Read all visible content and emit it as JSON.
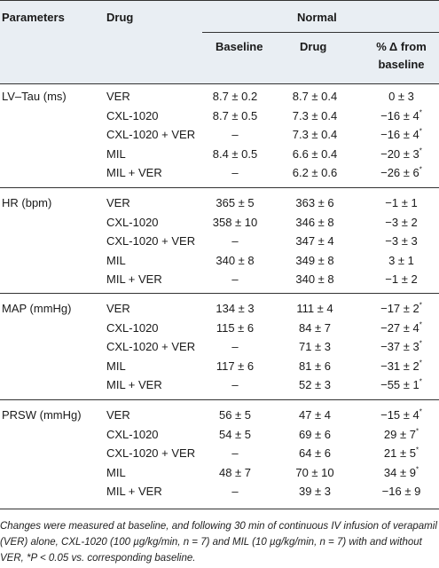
{
  "headers": {
    "parameters": "Parameters",
    "drug": "Drug",
    "normal": "Normal",
    "baseline": "Baseline",
    "drug_col": "Drug",
    "pct_line1": "% Δ from",
    "pct_line2": "baseline"
  },
  "groups": [
    {
      "param": "LV–Tau (ms)",
      "rows": [
        {
          "drug": "VER",
          "baseline": "8.7 ± 0.2",
          "drugval": "8.7 ± 0.4",
          "pct": "0 ± 3",
          "sig": false
        },
        {
          "drug": "CXL-1020",
          "baseline": "8.7 ± 0.5",
          "drugval": "7.3 ± 0.4",
          "pct": "−16 ± 4",
          "sig": true
        },
        {
          "drug": "CXL-1020 + VER",
          "baseline": "–",
          "drugval": "7.3 ± 0.4",
          "pct": "−16 ± 4",
          "sig": true
        },
        {
          "drug": "MIL",
          "baseline": "8.4 ± 0.5",
          "drugval": "6.6 ± 0.4",
          "pct": "−20 ± 3",
          "sig": true
        },
        {
          "drug": "MIL + VER",
          "baseline": "–",
          "drugval": "6.2 ± 0.6",
          "pct": "−26 ± 6",
          "sig": true
        }
      ]
    },
    {
      "param": "HR (bpm)",
      "rows": [
        {
          "drug": "VER",
          "baseline": "365 ± 5",
          "drugval": "363 ± 6",
          "pct": "−1 ± 1",
          "sig": false
        },
        {
          "drug": "CXL-1020",
          "baseline": "358 ± 10",
          "drugval": "346 ± 8",
          "pct": "−3 ± 2",
          "sig": false
        },
        {
          "drug": "CXL-1020 + VER",
          "baseline": "–",
          "drugval": "347 ± 4",
          "pct": "−3 ± 3",
          "sig": false
        },
        {
          "drug": "MIL",
          "baseline": "340 ± 8",
          "drugval": "349 ± 8",
          "pct": "3 ± 1",
          "sig": false
        },
        {
          "drug": "MIL + VER",
          "baseline": "–",
          "drugval": "340 ± 8",
          "pct": "−1 ± 2",
          "sig": false
        }
      ]
    },
    {
      "param": "MAP (mmHg)",
      "rows": [
        {
          "drug": "VER",
          "baseline": "134 ± 3",
          "drugval": "111 ± 4",
          "pct": "−17 ± 2",
          "sig": true
        },
        {
          "drug": "CXL-1020",
          "baseline": "115 ± 6",
          "drugval": "84 ± 7",
          "pct": "−27 ± 4",
          "sig": true
        },
        {
          "drug": "CXL-1020 + VER",
          "baseline": "–",
          "drugval": "71 ± 3",
          "pct": "−37 ± 3",
          "sig": true
        },
        {
          "drug": "MIL",
          "baseline": "117 ± 6",
          "drugval": "81 ± 6",
          "pct": "−31 ± 2",
          "sig": true
        },
        {
          "drug": "MIL + VER",
          "baseline": "–",
          "drugval": "52 ± 3",
          "pct": "−55 ± 1",
          "sig": true
        }
      ]
    },
    {
      "param": "PRSW (mmHg)",
      "rows": [
        {
          "drug": "VER",
          "baseline": "56 ± 5",
          "drugval": "47 ± 4",
          "pct": "−15 ± 4",
          "sig": true
        },
        {
          "drug": "CXL-1020",
          "baseline": "54 ± 5",
          "drugval": "69 ± 6",
          "pct": "29 ± 7",
          "sig": true
        },
        {
          "drug": "CXL-1020 + VER",
          "baseline": "–",
          "drugval": "64 ± 6",
          "pct": "21 ± 5",
          "sig": true
        },
        {
          "drug": "MIL",
          "baseline": "48 ± 7",
          "drugval": "70 ± 10",
          "pct": "34 ± 9",
          "sig": true
        },
        {
          "drug": "MIL + VER",
          "baseline": "–",
          "drugval": "39 ± 3",
          "pct": "−16 ± 9",
          "sig": false
        }
      ]
    }
  ],
  "sig_marker": "*",
  "footnote": "Changes were measured at baseline, and following 30 min of continuous IV infusion of verapamil (VER) alone, CXL-1020 (100 µg/kg/min, n = 7) and MIL (10 µg/kg/min, n = 7) with and without VER, *P < 0.05 vs. corresponding baseline.",
  "colors": {
    "shade": "#e9eef3",
    "rule": "#333333",
    "text": "#1a1a1a"
  }
}
